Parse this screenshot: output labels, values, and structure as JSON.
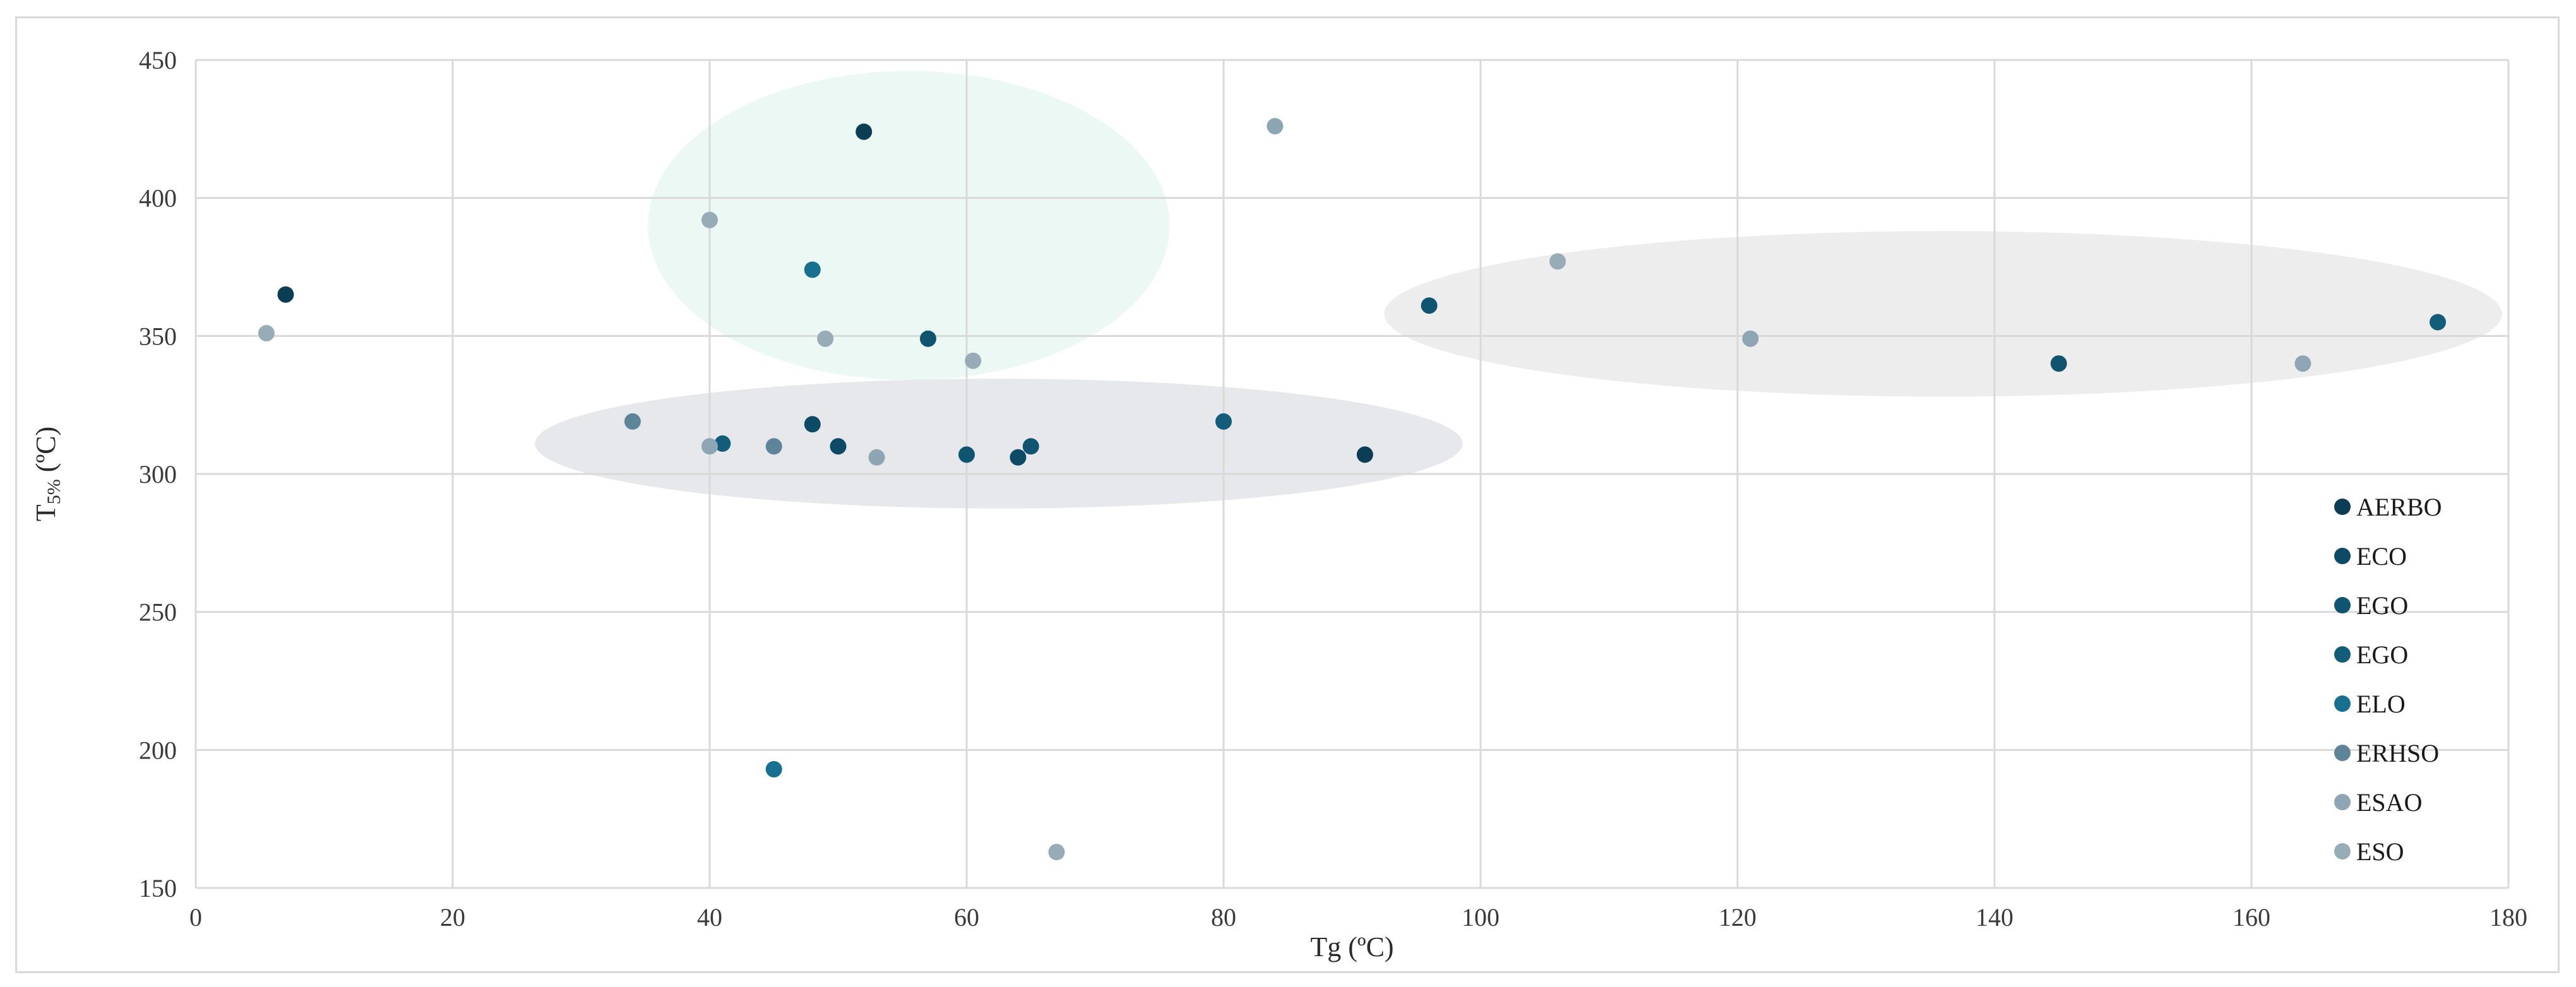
{
  "chart_data": {
    "type": "scatter",
    "xlabel": "Tg (ºC)",
    "ylabel": {
      "main": "T",
      "sub": "5%",
      "unit": " (ºC)"
    },
    "xlim": [
      0,
      180
    ],
    "ylim": [
      150,
      450
    ],
    "xticks": [
      0,
      20,
      40,
      60,
      80,
      100,
      120,
      140,
      160,
      180
    ],
    "yticks": [
      150,
      200,
      250,
      300,
      350,
      400,
      450
    ],
    "grid": true,
    "legend_position": "right",
    "series": [
      {
        "name": "AERBO",
        "color": "#0b3d55",
        "points": [
          [
            52,
            424
          ],
          [
            7,
            365
          ],
          [
            91,
            307
          ]
        ]
      },
      {
        "name": "ECO",
        "color": "#0d4a66",
        "points": [
          [
            50,
            310
          ],
          [
            48,
            318
          ],
          [
            64,
            306
          ]
        ]
      },
      {
        "name": "EGO",
        "color": "#0f5570",
        "points": [
          [
            57,
            349
          ],
          [
            60,
            307
          ],
          [
            65,
            310
          ],
          [
            96,
            361
          ],
          [
            145,
            340
          ]
        ]
      },
      {
        "name": "EGO",
        "color": "#125d7a",
        "points": [
          [
            41,
            311
          ],
          [
            80,
            319
          ],
          [
            174.5,
            355
          ]
        ]
      },
      {
        "name": "ELO",
        "color": "#17708f",
        "points": [
          [
            48,
            374
          ],
          [
            45,
            193
          ]
        ]
      },
      {
        "name": "ERHSO",
        "color": "#5d8499",
        "points": [
          [
            34,
            319
          ],
          [
            45,
            310
          ]
        ]
      },
      {
        "name": "ESAO",
        "color": "#8ea6b4",
        "points": [
          [
            40,
            310
          ],
          [
            53,
            306
          ],
          [
            84,
            426
          ],
          [
            121,
            349
          ],
          [
            164,
            340
          ]
        ]
      },
      {
        "name": "ESO",
        "color": "#98acb8",
        "points": [
          [
            5.5,
            351
          ],
          [
            40,
            392
          ],
          [
            49,
            349
          ],
          [
            60.5,
            341
          ],
          [
            67,
            163
          ],
          [
            106,
            377
          ]
        ]
      }
    ],
    "regions": [
      {
        "cx": 55.5,
        "cy": 390,
        "rx": 20.3,
        "ry": 56,
        "color": "#d2efe4",
        "opacity": 0.45
      },
      {
        "cx": 62.5,
        "cy": 311,
        "rx": 36.1,
        "ry": 23.5,
        "color": "#c3c8cf",
        "opacity": 0.42
      },
      {
        "cx": 136,
        "cy": 358,
        "rx": 43.5,
        "ry": 30,
        "color": "#c8c8c8",
        "opacity": 0.32
      }
    ]
  }
}
